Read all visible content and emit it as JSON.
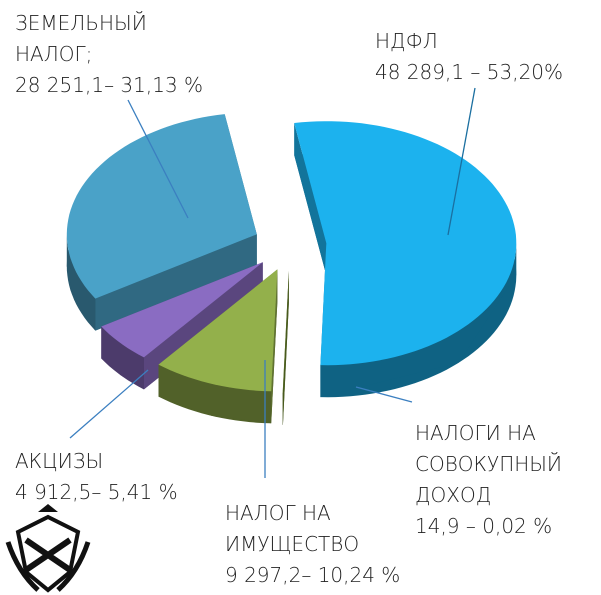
{
  "chart_data": {
    "type": "pie3d",
    "categories": [
      "НДФЛ",
      "НАЛОГИ НА СОВОКУПНЫЙ ДОХОД",
      "НАЛОГ НА ИМУЩЕСТВО",
      "АКЦИЗЫ",
      "ЗЕМЕЛЬНЫЙ НАЛОГ;"
    ],
    "values": [
      53.2,
      0.02,
      10.24,
      5.41,
      31.13
    ],
    "amounts": [
      48289.1,
      14.9,
      9297.2,
      4912.5,
      28251.1
    ],
    "value_labels": [
      "48 289,1 – 53,20%",
      "14,9 –  0,02 %",
      "9 297,2– 10,24 %",
      "4 912,5– 5,41 %",
      "28 251,1– 31,13 %"
    ],
    "colors": [
      "#1cb2ee",
      "#6f8a2c",
      "#93b04b",
      "#8a6cc2",
      "#4aa2c8"
    ]
  }
}
